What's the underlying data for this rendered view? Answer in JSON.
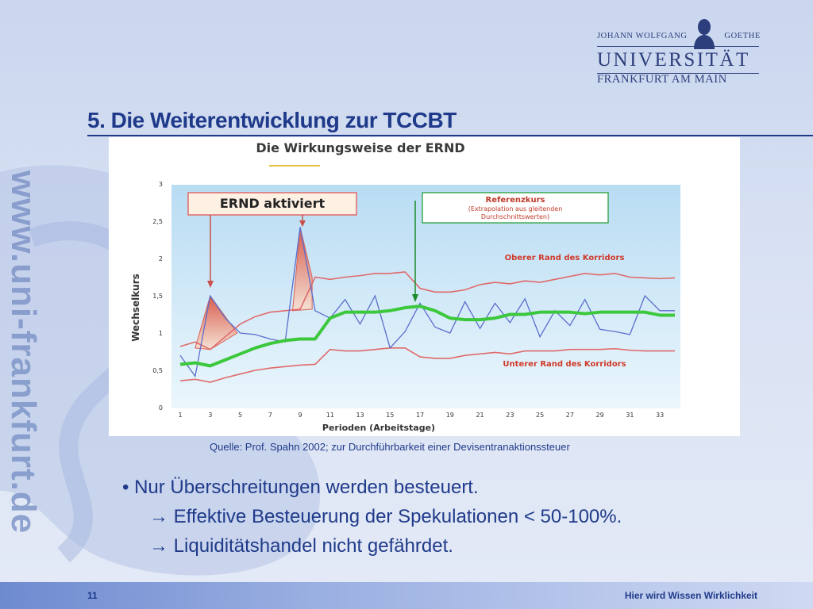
{
  "logo": {
    "top_left": "JOHANN WOLFGANG",
    "top_right": "GOETHE",
    "university": "UNIVERSITÄT",
    "city": "FRANKFURT AM MAIN"
  },
  "watermark": "www.uni-frankfurt.de",
  "slide_title": "5. Die Weiterentwicklung zur TCCBT",
  "source": "Quelle: Prof. Spahn 2002; zur Durchführbarkeit einer Devisentranaktionssteuer",
  "bullets": {
    "main": "• Nur Überschreitungen werden besteuert.",
    "sub1": "Effektive Besteuerung der Spekulationen < 50-100%.",
    "sub2": "Liquiditätshandel nicht gefährdet."
  },
  "arrow_glyph": "→",
  "footer": {
    "page_number": "11",
    "slogan": "Hier wird Wissen Wirklichkeit"
  },
  "colors": {
    "title": "#1f3a8a",
    "upper": "#e06a6a",
    "lower": "#e06a6a",
    "green": "#3cc83c",
    "blue": "#5b6ecc"
  },
  "chart_data": {
    "type": "line",
    "title": "Die Wirkungsweise der ERND",
    "xlabel": "Perioden (Arbeitstage)",
    "ylabel": "Wechselkurs",
    "ylim": [
      0,
      3
    ],
    "yticks": [
      "0",
      "0,5",
      "1",
      "1,5",
      "2",
      "2,5",
      "3"
    ],
    "xticks": [
      "1",
      "3",
      "5",
      "7",
      "9",
      "11",
      "13",
      "15",
      "17",
      "19",
      "21",
      "23",
      "25",
      "27",
      "29",
      "31",
      "33"
    ],
    "x": [
      1,
      2,
      3,
      4,
      5,
      6,
      7,
      8,
      9,
      10,
      11,
      12,
      13,
      14,
      15,
      16,
      17,
      18,
      19,
      20,
      21,
      22,
      23,
      24,
      25,
      26,
      27,
      28,
      29,
      30,
      31,
      32,
      33,
      34
    ],
    "series": [
      {
        "key": "upper",
        "values": [
          0.82,
          0.88,
          0.78,
          0.95,
          1.12,
          1.22,
          1.28,
          1.3,
          1.32,
          1.75,
          1.72,
          1.75,
          1.77,
          1.8,
          1.8,
          1.82,
          1.6,
          1.55,
          1.55,
          1.58,
          1.65,
          1.68,
          1.66,
          1.7,
          1.68,
          1.72,
          1.76,
          1.8,
          1.78,
          1.8,
          1.75,
          1.74,
          1.73,
          1.74
        ]
      },
      {
        "key": "lower",
        "values": [
          0.36,
          0.38,
          0.34,
          0.4,
          0.45,
          0.5,
          0.53,
          0.55,
          0.57,
          0.58,
          0.78,
          0.76,
          0.76,
          0.78,
          0.8,
          0.8,
          0.68,
          0.66,
          0.66,
          0.7,
          0.72,
          0.74,
          0.72,
          0.76,
          0.76,
          0.76,
          0.78,
          0.78,
          0.78,
          0.79,
          0.77,
          0.76,
          0.76,
          0.76
        ]
      },
      {
        "key": "green",
        "values": [
          0.58,
          0.6,
          0.56,
          0.64,
          0.72,
          0.8,
          0.86,
          0.9,
          0.92,
          0.92,
          1.2,
          1.28,
          1.28,
          1.28,
          1.3,
          1.34,
          1.36,
          1.3,
          1.2,
          1.18,
          1.18,
          1.2,
          1.25,
          1.25,
          1.28,
          1.28,
          1.28,
          1.26,
          1.28,
          1.28,
          1.28,
          1.28,
          1.24,
          1.24
        ]
      },
      {
        "key": "blue",
        "values": [
          0.7,
          0.42,
          1.5,
          1.2,
          1.0,
          0.98,
          0.92,
          0.88,
          2.42,
          1.3,
          1.2,
          1.45,
          1.12,
          1.5,
          0.8,
          1.02,
          1.4,
          1.08,
          1.0,
          1.42,
          1.06,
          1.4,
          1.14,
          1.46,
          0.95,
          1.3,
          1.1,
          1.45,
          1.05,
          1.02,
          0.98,
          1.5,
          1.3,
          1.3
        ]
      }
    ],
    "annotations": {
      "box1": "ERND aktiviert",
      "ref_title": "Referenzkurs",
      "ref_line1": "(Extrapolation aus gleitenden",
      "ref_line2": "Durchschnittswerten)",
      "upper_label": "Oberer Rand des Korridors",
      "lower_label": "Unterer Rand des Korridors"
    },
    "grid": false
  }
}
